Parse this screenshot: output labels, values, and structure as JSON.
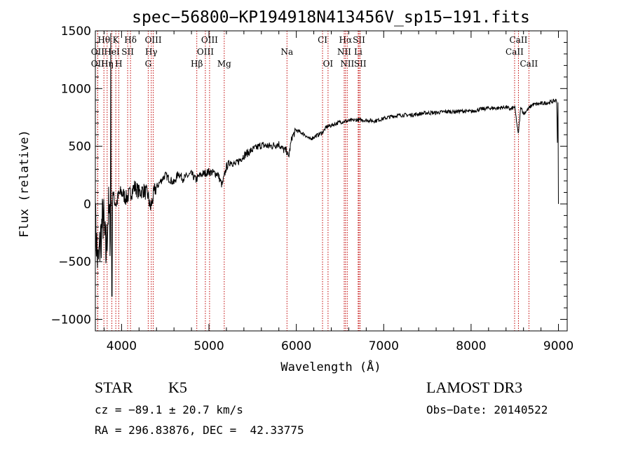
{
  "chart_data": {
    "type": "line",
    "title": "spec−56800−KP194918N413456V_sp15−191.fits",
    "xlabel": "Wavelength (Å)",
    "ylabel": "Flux (relative)",
    "xlim": [
      3700,
      9100
    ],
    "ylim": [
      -1100,
      1500
    ],
    "x_ticks": [
      4000,
      5000,
      6000,
      7000,
      8000,
      9000
    ],
    "x_tick_labels": [
      "4000",
      "5000",
      "6000",
      "7000",
      "8000",
      "9000"
    ],
    "y_ticks": [
      -1000,
      -500,
      0,
      500,
      1000,
      1500
    ],
    "y_tick_labels": [
      "−1000",
      "−500",
      "0",
      "500",
      "1000",
      "1500"
    ],
    "series": [
      {
        "name": "flux",
        "x": [
          3700,
          3730,
          3760,
          3790,
          3820,
          3850,
          3870,
          3890,
          3910,
          3940,
          3970,
          4000,
          4050,
          4100,
          4150,
          4200,
          4250,
          4300,
          4330,
          4380,
          4450,
          4500,
          4600,
          4650,
          4700,
          4800,
          4850,
          4900,
          5000,
          5100,
          5150,
          5200,
          5250,
          5300,
          5400,
          5500,
          5600,
          5700,
          5800,
          5850,
          5890,
          5910,
          5950,
          6000,
          6050,
          6100,
          6150,
          6200,
          6300,
          6350,
          6400,
          6500,
          6600,
          6700,
          6800,
          6900,
          7000,
          7100,
          7200,
          7300,
          7400,
          7500,
          7600,
          7700,
          7800,
          7900,
          8000,
          8100,
          8200,
          8300,
          8400,
          8450,
          8500,
          8540,
          8570,
          8600,
          8700,
          8800,
          8900,
          8980,
          9000
        ],
        "y": [
          -150,
          -550,
          -300,
          -100,
          -450,
          -50,
          -250,
          200,
          50,
          0,
          80,
          100,
          50,
          90,
          150,
          100,
          120,
          80,
          -40,
          120,
          200,
          250,
          180,
          270,
          220,
          260,
          210,
          250,
          280,
          260,
          160,
          320,
          370,
          340,
          420,
          470,
          510,
          500,
          520,
          470,
          460,
          400,
          580,
          640,
          620,
          600,
          560,
          580,
          620,
          670,
          680,
          710,
          720,
          730,
          725,
          720,
          740,
          760,
          770,
          770,
          780,
          790,
          790,
          800,
          800,
          805,
          800,
          820,
          830,
          830,
          840,
          820,
          840,
          600,
          850,
          780,
          860,
          870,
          880,
          900,
          0
        ]
      }
    ],
    "lines": [
      {
        "label": "Hθ",
        "wavelength": 3798,
        "row": 1
      },
      {
        "label": "K",
        "wavelength": 3934,
        "row": 1
      },
      {
        "label": "Hδ",
        "wavelength": 4102,
        "row": 1
      },
      {
        "label": "OIII",
        "wavelength": 4363,
        "row": 1
      },
      {
        "label": "OIII",
        "wavelength": 5007,
        "row": 1
      },
      {
        "label": "CI",
        "wavelength": 6300,
        "row": 1
      },
      {
        "label": "Hα",
        "wavelength": 6563,
        "row": 1
      },
      {
        "label": "SII",
        "wavelength": 6717,
        "row": 1
      },
      {
        "label": "CaII",
        "wavelength": 8542,
        "row": 1
      },
      {
        "label": "OII",
        "wavelength": 3727,
        "row": 2
      },
      {
        "label": "HeI",
        "wavelength": 3889,
        "row": 2
      },
      {
        "label": "SII",
        "wavelength": 4070,
        "row": 2
      },
      {
        "label": "Hγ",
        "wavelength": 4340,
        "row": 2
      },
      {
        "label": "OIII",
        "wavelength": 4959,
        "row": 2
      },
      {
        "label": "Na",
        "wavelength": 5893,
        "row": 2
      },
      {
        "label": "NII",
        "wavelength": 6548,
        "row": 2
      },
      {
        "label": "Li",
        "wavelength": 6708,
        "row": 2
      },
      {
        "label": "CaII",
        "wavelength": 8498,
        "row": 2
      },
      {
        "label": "OII",
        "wavelength": 3727,
        "row": 3
      },
      {
        "label": "Hη",
        "wavelength": 3835,
        "row": 3
      },
      {
        "label": "H",
        "wavelength": 3968,
        "row": 3
      },
      {
        "label": "G",
        "wavelength": 4305,
        "row": 3
      },
      {
        "label": "Hβ",
        "wavelength": 4861,
        "row": 3
      },
      {
        "label": "Mg",
        "wavelength": 5175,
        "row": 3
      },
      {
        "label": "OI",
        "wavelength": 6363,
        "row": 3
      },
      {
        "label": "NII",
        "wavelength": 6583,
        "row": 3
      },
      {
        "label": "SII",
        "wavelength": 6731,
        "row": 3
      },
      {
        "label": "CaII",
        "wavelength": 8662,
        "row": 3
      }
    ]
  },
  "info": {
    "class": "STAR",
    "subclass": "K5",
    "survey": "LAMOST DR3",
    "cz": "cz = −89.1 ± 20.7 km/s",
    "obs_date": "Obs−Date: 20140522",
    "coords": "RA = 296.83876, DEC =  42.33775"
  }
}
